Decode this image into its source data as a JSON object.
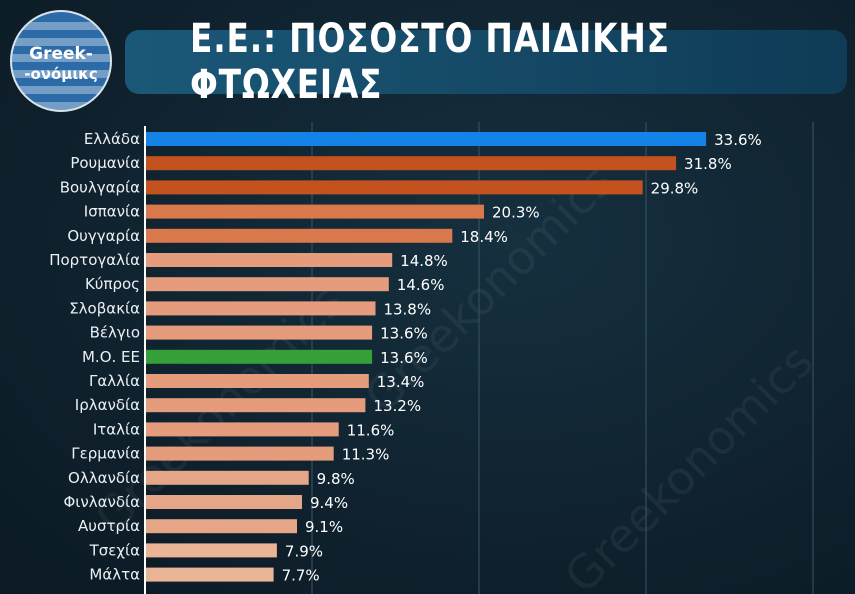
{
  "title": "Ε.Ε.: ΠΟΣΟΣΤΟ ΠΑΙΔΙΚΗΣ ΦΤΩΧΕΙΑΣ",
  "logo": {
    "line1": "Greek-",
    "line2": "-ονόμικς"
  },
  "watermark": "Greekonomics",
  "chart_data": {
    "type": "bar",
    "orientation": "horizontal",
    "title": "Ε.Ε.: ΠΟΣΟΣΤΟ ΠΑΙΔΙΚΗΣ ΦΤΩΧΕΙΑΣ",
    "categories": [
      "Ελλάδα",
      "Ρουμανία",
      "Βουλγαρία",
      "Ισπανία",
      "Ουγγαρία",
      "Πορτογαλία",
      "Κύπρος",
      "Σλοβακία",
      "Βέλγιο",
      "Μ.Ο. ΕΕ",
      "Γαλλία",
      "Ιρλανδία",
      "Ιταλία",
      "Γερμανία",
      "Ολλανδία",
      "Φινλανδία",
      "Αυστρία",
      "Τσεχία",
      "Μάλτα"
    ],
    "values": [
      33.6,
      31.8,
      29.8,
      20.3,
      18.4,
      14.8,
      14.6,
      13.8,
      13.6,
      13.6,
      13.4,
      13.2,
      11.6,
      11.3,
      9.8,
      9.4,
      9.1,
      7.9,
      7.7
    ],
    "labels": [
      "33.6%",
      "31.8%",
      "29.8%",
      "20.3%",
      "18.4%",
      "14.8%",
      "14.6%",
      "13.8%",
      "13.6%",
      "13.6%",
      "13.4%",
      "13.2%",
      "11.6%",
      "11.3%",
      "9.8%",
      "9.4%",
      "9.1%",
      "7.9%",
      "7.7%"
    ],
    "colors": [
      "#1482e6",
      "#c4521f",
      "#c4521f",
      "#d9784a",
      "#d9784a",
      "#e59c7c",
      "#e59c7c",
      "#e59c7c",
      "#e59c7c",
      "#34a037",
      "#e59c7c",
      "#e59c7c",
      "#e59c7c",
      "#e59c7c",
      "#e5a587",
      "#e5a587",
      "#e5a587",
      "#eab497",
      "#eab497"
    ],
    "xlim": [
      0,
      40
    ],
    "gridlines": [
      10,
      20,
      30,
      40
    ],
    "grid": true,
    "legend": "none"
  }
}
